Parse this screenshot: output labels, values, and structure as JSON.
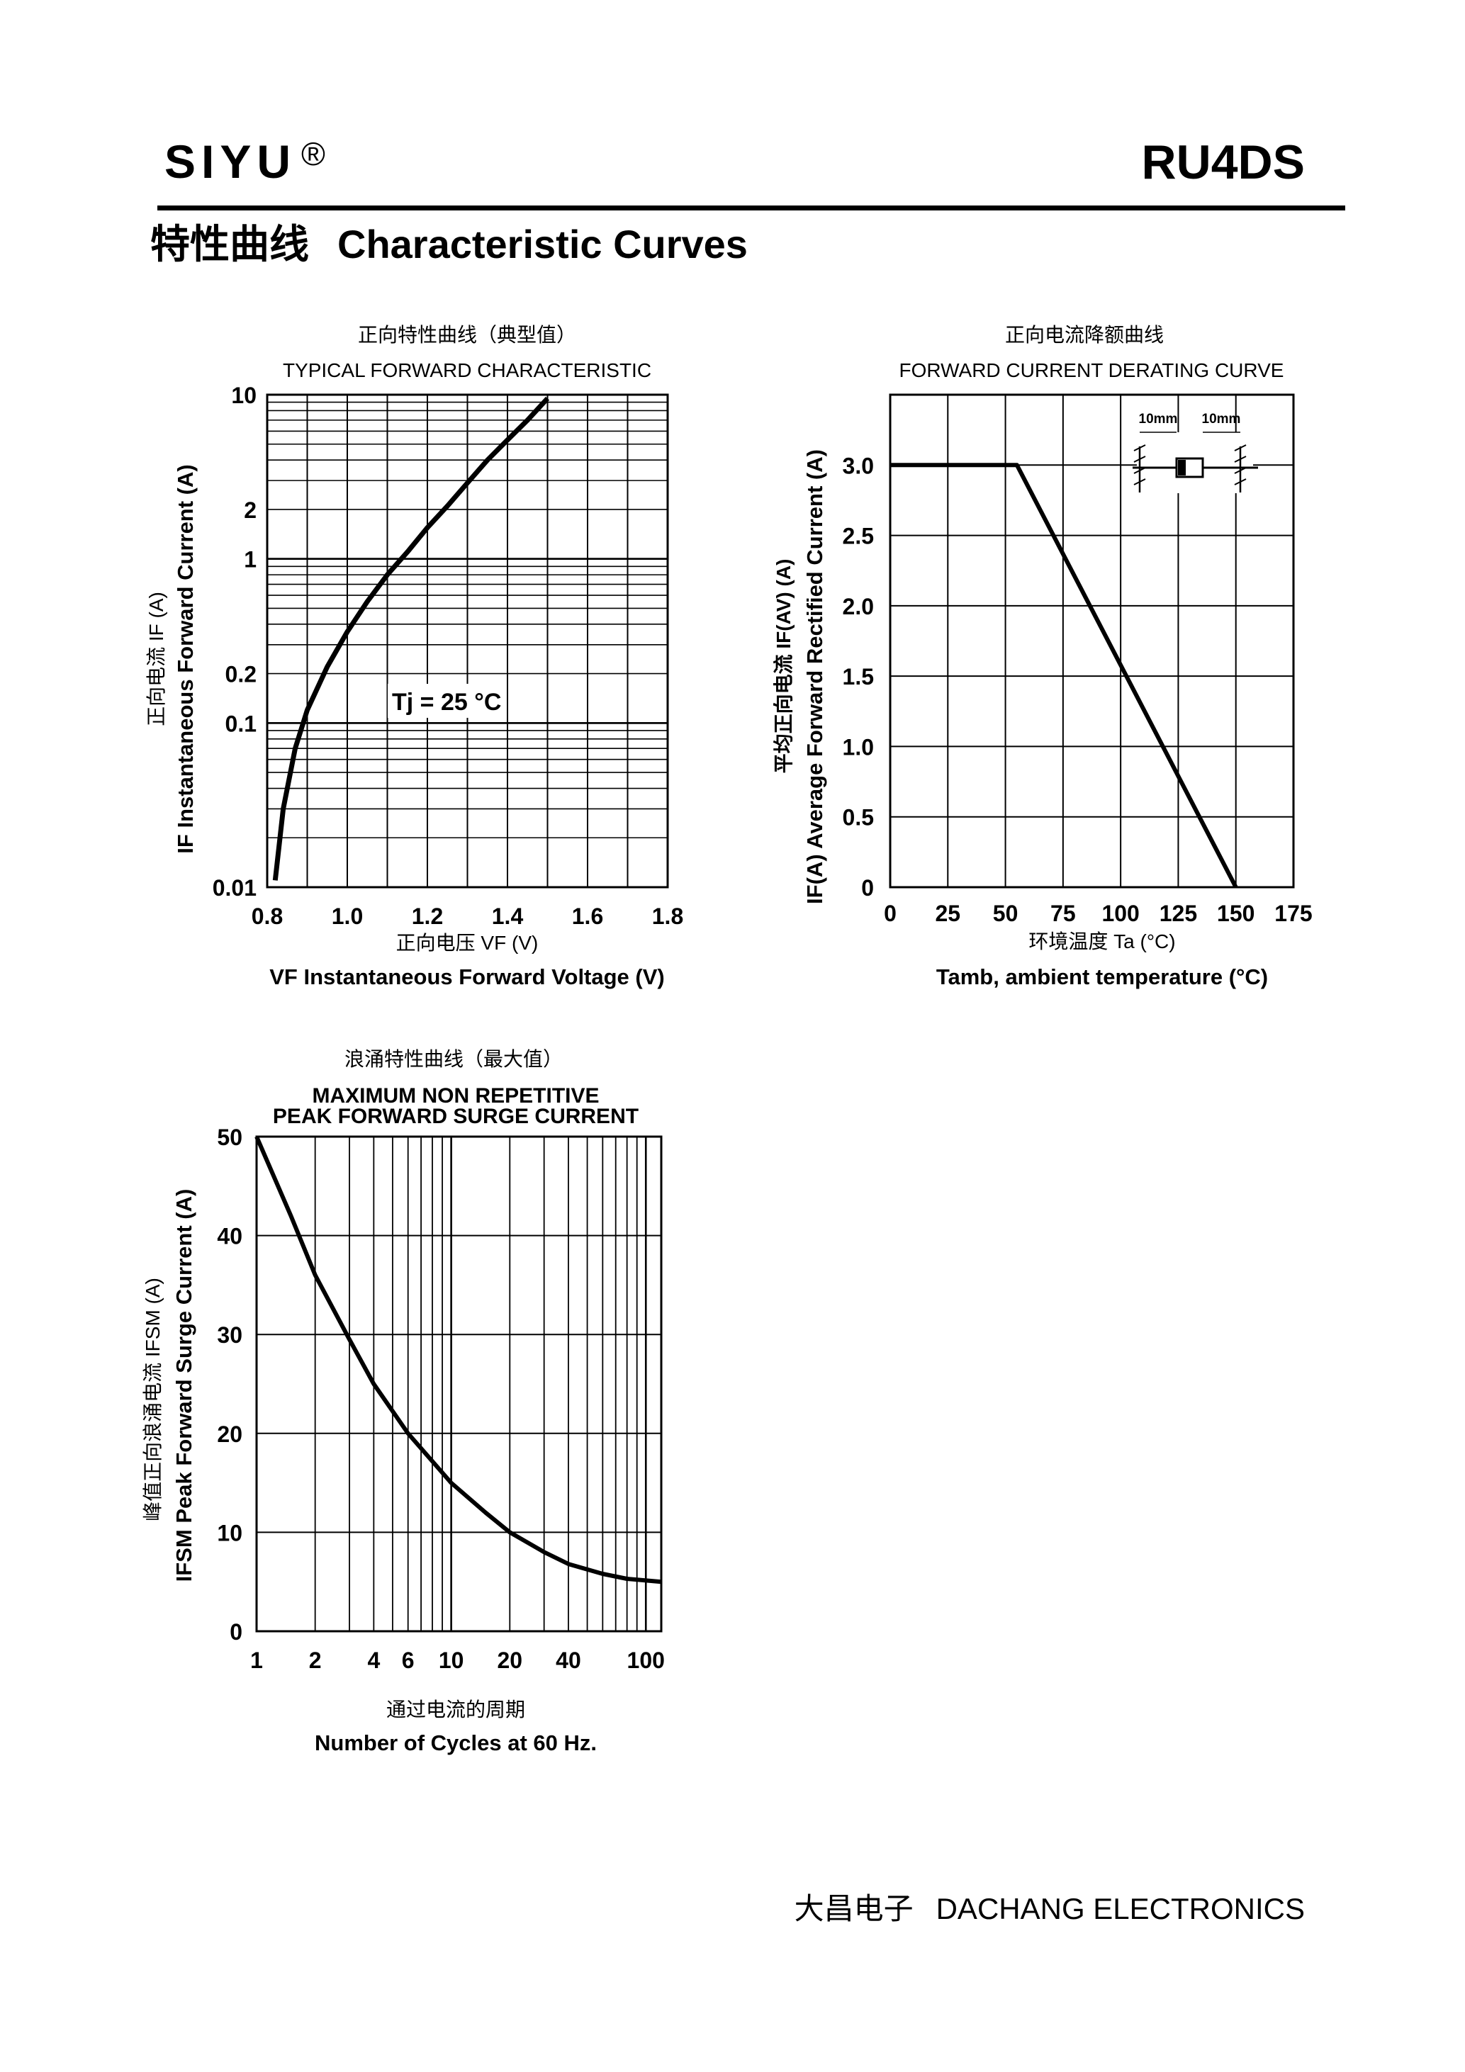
{
  "header": {
    "brand": "SIYU",
    "brand_mark": "®",
    "part_number": "RU4DS",
    "section_title_cn": "特性曲线",
    "section_title_en": "Characteristic Curves"
  },
  "footer": {
    "company_cn": "大昌电子",
    "company_en": "DACHANG ELECTRONICS"
  },
  "chart_data": [
    {
      "type": "line",
      "title_cn": "正向特性曲线（典型值）",
      "title": "TYPICAL FORWARD CHARACTERISTIC",
      "xlabel_cn": "正向电压",
      "xlabel_symbol": "VF (V)",
      "xlabel": "VF  Instantaneous Forward Voltage (V)",
      "ylabel_cn": "正向电流",
      "ylabel_symbol": "IF (A)",
      "ylabel": "IF Instantaneous Forward Current (A)",
      "x_ticks": [
        "0.8",
        "1.0",
        "1.2",
        "1.4",
        "1.6",
        "1.8"
      ],
      "y_ticks": [
        "0.01",
        "0.1",
        "0.2",
        "1",
        "2",
        "10"
      ],
      "xlim": [
        0.8,
        1.8
      ],
      "ylim": [
        0.01,
        10
      ],
      "y_scale": "log",
      "grid": true,
      "annotation": "Tj = 25 °C",
      "series": [
        {
          "x": [
            0.82,
            0.84,
            0.87,
            0.9,
            0.95,
            1.0,
            1.05,
            1.1,
            1.15,
            1.2,
            1.25,
            1.3,
            1.35,
            1.4,
            1.45,
            1.5
          ],
          "y": [
            0.011,
            0.03,
            0.07,
            0.12,
            0.22,
            0.36,
            0.55,
            0.8,
            1.1,
            1.55,
            2.1,
            2.9,
            4.0,
            5.3,
            7.0,
            9.5
          ]
        }
      ]
    },
    {
      "type": "line",
      "title_cn": "正向电流降额曲线",
      "title": "FORWARD CURRENT DERATING CURVE",
      "xlabel_cn": "环境温度",
      "xlabel_symbol": "Ta (°C)",
      "xlabel": "Tamb, ambient temperature (°C)",
      "ylabel_cn": "平均正向电流",
      "ylabel_symbol": "IF(AV)  (A)",
      "ylabel": "IF(A)  Average Forward Rectified Current (A)",
      "x_ticks": [
        "0",
        "25",
        "50",
        "75",
        "100",
        "125",
        "150",
        "175"
      ],
      "y_ticks": [
        "0",
        "0.5",
        "1.0",
        "1.5",
        "2.0",
        "2.5",
        "3.0"
      ],
      "xlim": [
        0,
        175
      ],
      "ylim": [
        0,
        3.5
      ],
      "grid": true,
      "inset_labels": [
        "10mm",
        "10mm"
      ],
      "series": [
        {
          "x": [
            0,
            55,
            150
          ],
          "y": [
            3.0,
            3.0,
            0
          ]
        }
      ]
    },
    {
      "type": "line",
      "title_cn": "浪涌特性曲线（最大值）",
      "title_line1": "MAXIMUM NON REPETITIVE",
      "title_line2": "PEAK FORWARD SURGE CURRENT",
      "xlabel_cn": "通过电流的周期",
      "xlabel": "Number  of  Cycles at 60 Hz.",
      "ylabel_cn": "峰值正向浪涌电流",
      "ylabel_symbol": "IFSM (A)",
      "ylabel": "IFSM Peak Forward Surge Current (A)",
      "x_ticks": [
        "1",
        "2",
        "4",
        "6",
        "10",
        "20",
        "40",
        "100"
      ],
      "y_ticks": [
        "0",
        "10",
        "20",
        "30",
        "40",
        "50"
      ],
      "xlim": [
        1,
        120
      ],
      "ylim": [
        0,
        50
      ],
      "x_scale": "log",
      "grid": true,
      "series": [
        {
          "x": [
            1,
            1.5,
            2,
            3,
            4,
            6,
            10,
            15,
            20,
            30,
            40,
            60,
            80,
            120
          ],
          "y": [
            50,
            42,
            36,
            29.5,
            25,
            20,
            15,
            12,
            10,
            8,
            6.8,
            5.8,
            5.3,
            5
          ]
        }
      ]
    }
  ]
}
